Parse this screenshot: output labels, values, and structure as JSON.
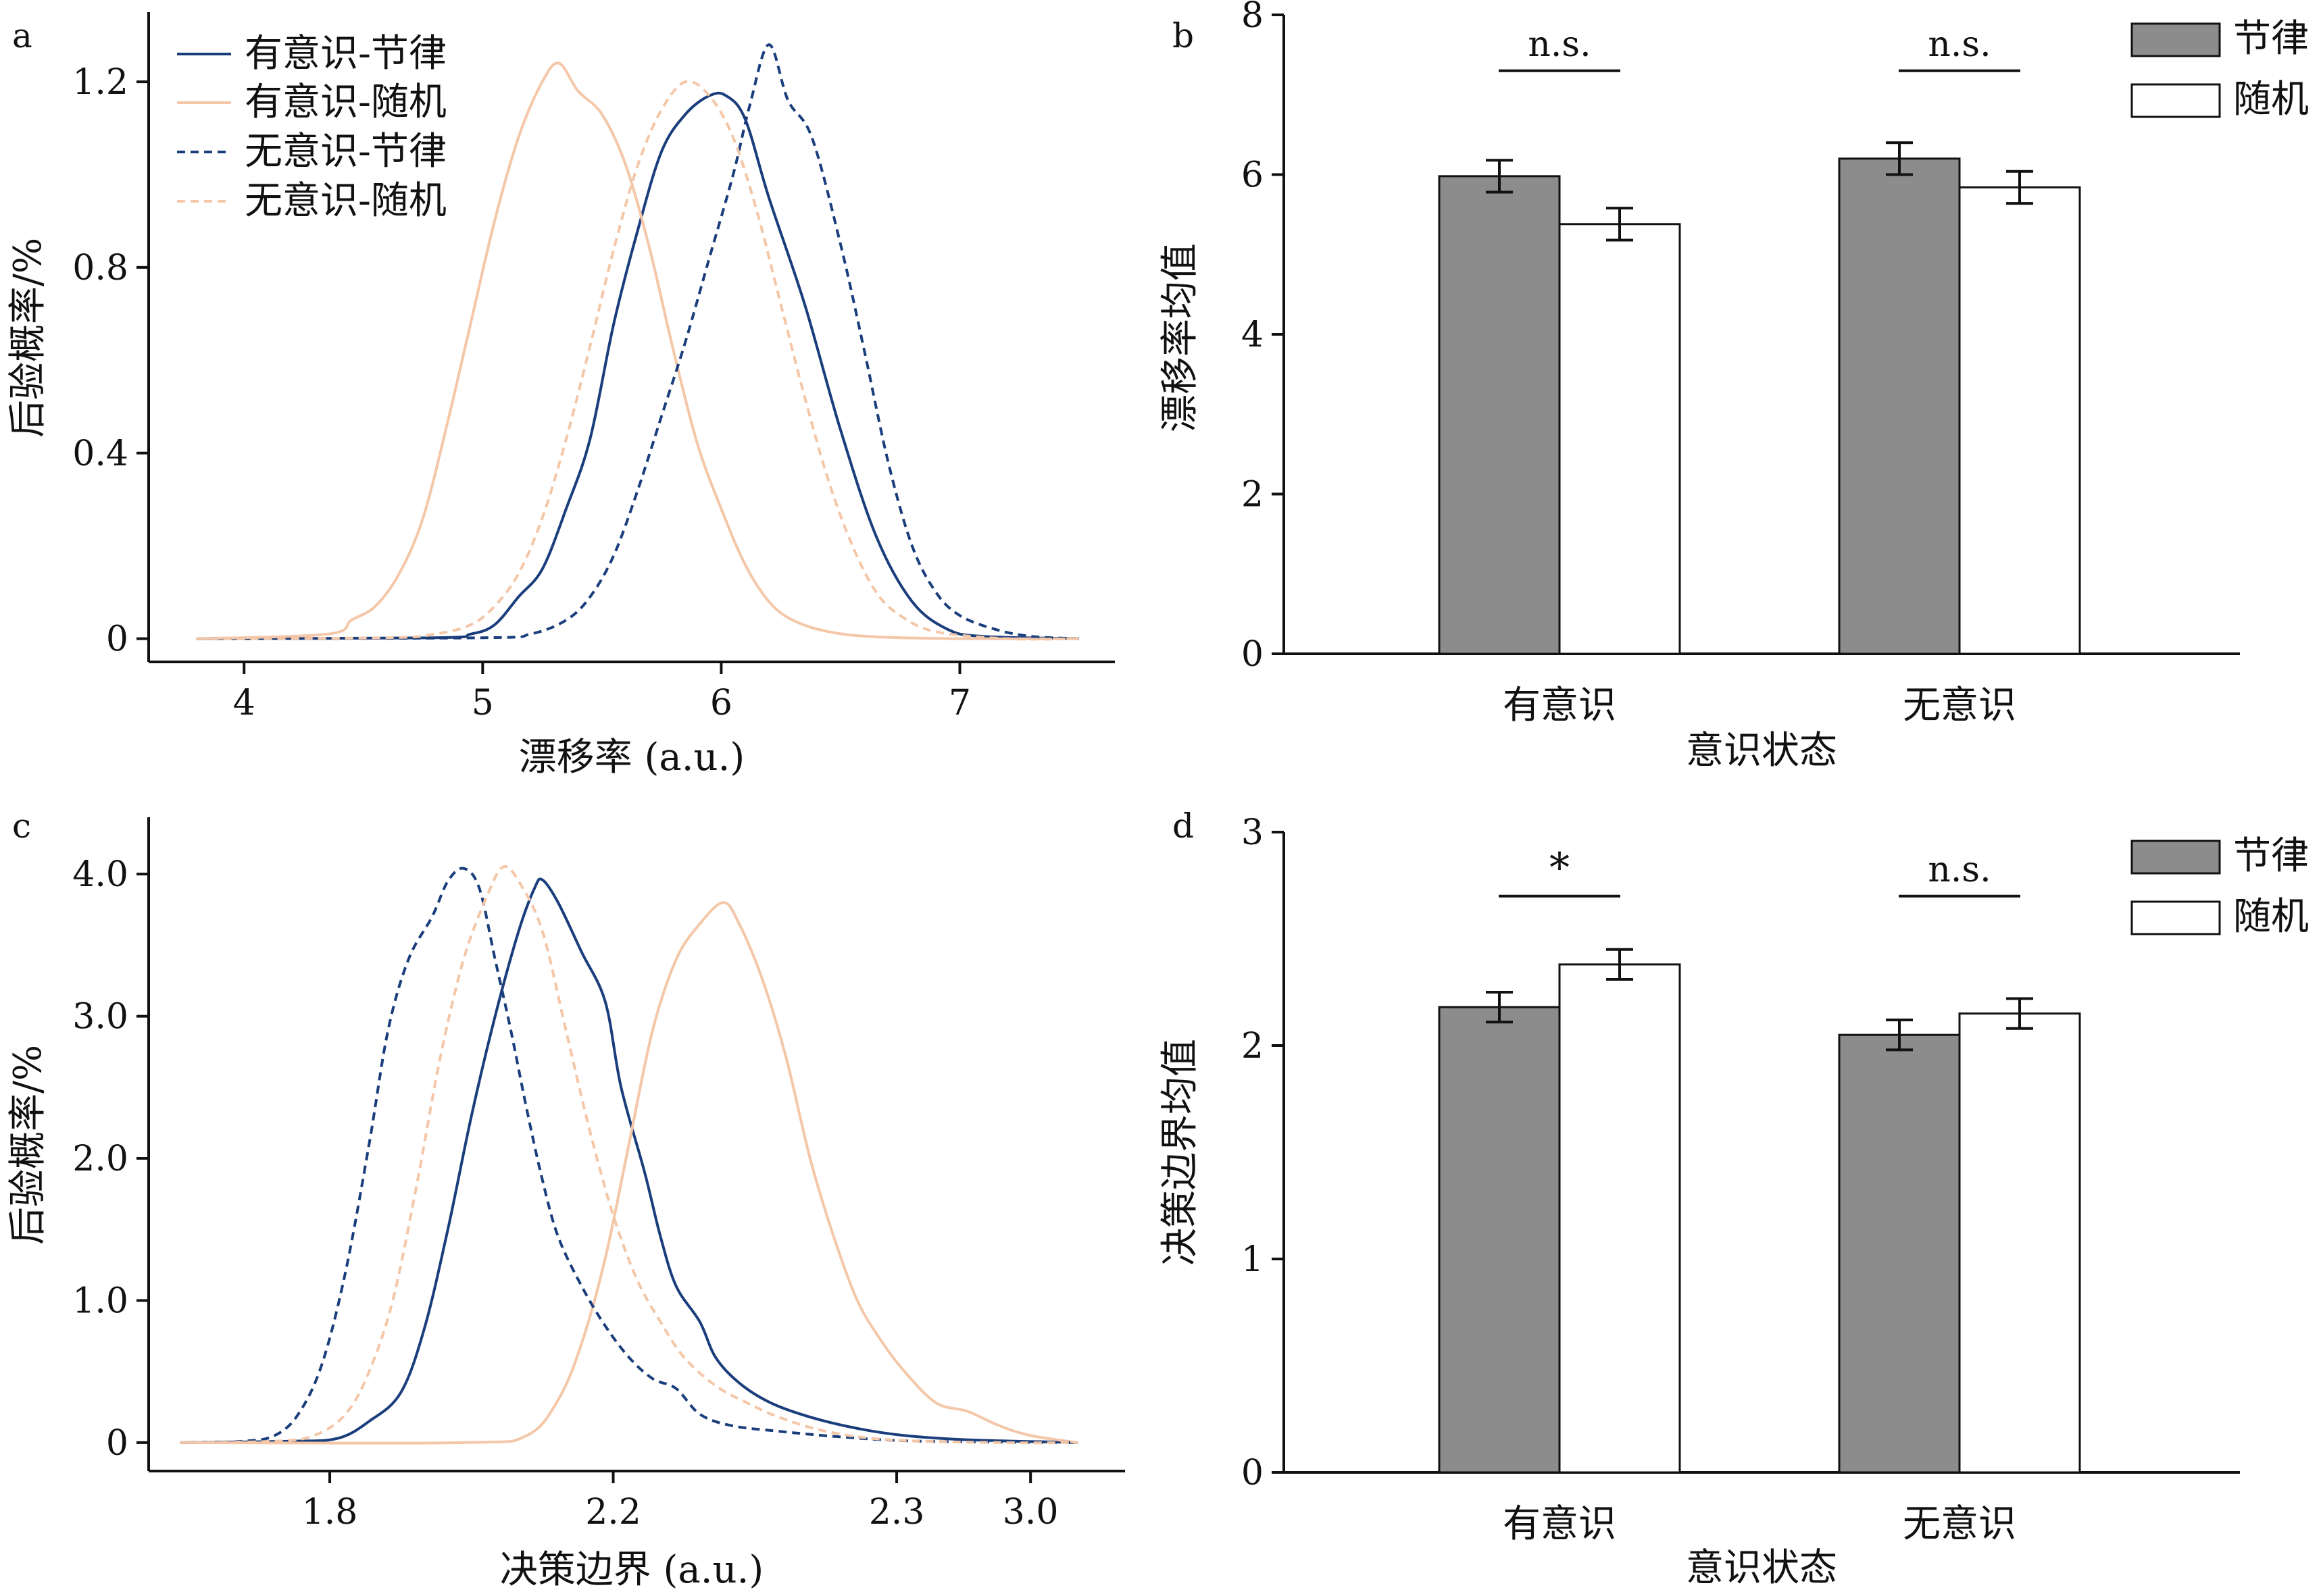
{
  "colors": {
    "conscious_rhythm": "#1a3d7c",
    "conscious_random": "#f4c7a8",
    "unconscious_rhythm": "#1a3d7c",
    "unconscious_random": "#f4c7a8",
    "bar_rhythm": "#8c8c8c",
    "bar_random": "#ffffff",
    "axis": "#111111"
  },
  "chart_data": [
    {
      "panel": "a",
      "type": "line",
      "xlabel": "漂移率 (a.u.)",
      "ylabel": "后验概率/%",
      "xlim": [
        3.6,
        7.65
      ],
      "ylim": [
        -0.05,
        1.35
      ],
      "x_ticks": [
        4,
        5,
        6,
        7
      ],
      "x_tick_labels": [
        "4",
        "5",
        "6",
        "7"
      ],
      "y_ticks": [
        0,
        0.4,
        0.8,
        1.2
      ],
      "y_tick_labels": [
        "0",
        "0.4",
        "0.8",
        "1.2"
      ],
      "series": [
        {
          "name": "有意识-节律",
          "dash": "solid",
          "color_key": "conscious_rhythm",
          "points": [
            [
              3.8,
              0
            ],
            [
              4.8,
              0.002
            ],
            [
              4.95,
              0.01
            ],
            [
              5.05,
              0.03
            ],
            [
              5.15,
              0.09
            ],
            [
              5.25,
              0.15
            ],
            [
              5.35,
              0.28
            ],
            [
              5.45,
              0.43
            ],
            [
              5.55,
              0.68
            ],
            [
              5.65,
              0.88
            ],
            [
              5.75,
              1.05
            ],
            [
              5.85,
              1.13
            ],
            [
              5.95,
              1.17
            ],
            [
              6.02,
              1.17
            ],
            [
              6.1,
              1.12
            ],
            [
              6.2,
              0.95
            ],
            [
              6.35,
              0.72
            ],
            [
              6.5,
              0.45
            ],
            [
              6.65,
              0.22
            ],
            [
              6.8,
              0.08
            ],
            [
              6.95,
              0.02
            ],
            [
              7.1,
              0.005
            ],
            [
              7.5,
              0
            ]
          ]
        },
        {
          "name": "有意识-随机",
          "dash": "solid",
          "color_key": "conscious_random",
          "points": [
            [
              3.8,
              0
            ],
            [
              4.35,
              0.01
            ],
            [
              4.45,
              0.04
            ],
            [
              4.55,
              0.07
            ],
            [
              4.65,
              0.14
            ],
            [
              4.75,
              0.26
            ],
            [
              4.85,
              0.46
            ],
            [
              4.95,
              0.68
            ],
            [
              5.05,
              0.9
            ],
            [
              5.15,
              1.08
            ],
            [
              5.25,
              1.2
            ],
            [
              5.32,
              1.24
            ],
            [
              5.4,
              1.18
            ],
            [
              5.5,
              1.13
            ],
            [
              5.6,
              1.02
            ],
            [
              5.7,
              0.84
            ],
            [
              5.8,
              0.62
            ],
            [
              5.9,
              0.42
            ],
            [
              6.0,
              0.28
            ],
            [
              6.1,
              0.16
            ],
            [
              6.2,
              0.08
            ],
            [
              6.3,
              0.04
            ],
            [
              6.45,
              0.015
            ],
            [
              6.65,
              0.004
            ],
            [
              7.0,
              0
            ],
            [
              7.5,
              0
            ]
          ]
        },
        {
          "name": "无意识-节律",
          "dash": "dashed",
          "color_key": "unconscious_rhythm",
          "points": [
            [
              3.8,
              0
            ],
            [
              5.0,
              0.002
            ],
            [
              5.2,
              0.01
            ],
            [
              5.35,
              0.04
            ],
            [
              5.45,
              0.09
            ],
            [
              5.55,
              0.18
            ],
            [
              5.65,
              0.32
            ],
            [
              5.75,
              0.48
            ],
            [
              5.85,
              0.64
            ],
            [
              5.95,
              0.82
            ],
            [
              6.05,
              1.0
            ],
            [
              6.12,
              1.15
            ],
            [
              6.2,
              1.28
            ],
            [
              6.28,
              1.16
            ],
            [
              6.38,
              1.08
            ],
            [
              6.5,
              0.85
            ],
            [
              6.6,
              0.62
            ],
            [
              6.7,
              0.38
            ],
            [
              6.8,
              0.2
            ],
            [
              6.9,
              0.1
            ],
            [
              7.0,
              0.05
            ],
            [
              7.15,
              0.02
            ],
            [
              7.3,
              0.005
            ],
            [
              7.5,
              0
            ]
          ]
        },
        {
          "name": "无意识-随机",
          "dash": "dashed",
          "color_key": "unconscious_random",
          "points": [
            [
              3.8,
              0
            ],
            [
              4.6,
              0.002
            ],
            [
              4.8,
              0.01
            ],
            [
              4.95,
              0.03
            ],
            [
              5.05,
              0.07
            ],
            [
              5.15,
              0.14
            ],
            [
              5.25,
              0.26
            ],
            [
              5.35,
              0.43
            ],
            [
              5.45,
              0.63
            ],
            [
              5.55,
              0.84
            ],
            [
              5.65,
              1.02
            ],
            [
              5.75,
              1.14
            ],
            [
              5.85,
              1.2
            ],
            [
              5.95,
              1.17
            ],
            [
              6.05,
              1.08
            ],
            [
              6.15,
              0.92
            ],
            [
              6.25,
              0.72
            ],
            [
              6.35,
              0.52
            ],
            [
              6.45,
              0.34
            ],
            [
              6.55,
              0.2
            ],
            [
              6.65,
              0.1
            ],
            [
              6.75,
              0.05
            ],
            [
              6.9,
              0.015
            ],
            [
              7.2,
              0
            ],
            [
              7.5,
              0
            ]
          ]
        }
      ]
    },
    {
      "panel": "b",
      "type": "bar",
      "xlabel": "意识状态",
      "ylabel": "漂移率均值",
      "ylim": [
        0,
        8
      ],
      "y_ticks": [
        0,
        2,
        4,
        6,
        8
      ],
      "y_tick_labels": [
        "0",
        "2",
        "4",
        "6",
        "8"
      ],
      "categories": [
        "有意识",
        "无意识"
      ],
      "series": [
        {
          "name": "节律",
          "color_key": "bar_rhythm",
          "values": [
            5.98,
            6.2
          ],
          "errors": [
            0.2,
            0.2
          ]
        },
        {
          "name": "随机",
          "color_key": "bar_random",
          "values": [
            5.38,
            5.84
          ],
          "errors": [
            0.2,
            0.2
          ]
        }
      ],
      "significance": [
        {
          "label": "n.s.",
          "y": 7.3
        },
        {
          "label": "n.s.",
          "y": 7.3
        }
      ]
    },
    {
      "panel": "c",
      "type": "line",
      "xlabel": "决策边界 (a.u.)",
      "ylabel": "后验概率/%",
      "xlim": [
        -0.4,
        5.8
      ],
      "ylim": [
        -0.2,
        4.4
      ],
      "x_ticks": [
        0.75,
        2.55,
        4.35,
        5.2
      ],
      "x_tick_labels": [
        "1.8",
        "2.2",
        "2.3",
        "3.0"
      ],
      "y_ticks": [
        0,
        1,
        2,
        3,
        4
      ],
      "y_tick_labels": [
        "0",
        "1.0",
        "2.0",
        "3.0",
        "4.0"
      ],
      "series": [
        {
          "name": "有意识-节律",
          "dash": "solid",
          "color_key": "conscious_rhythm",
          "points": [
            [
              -0.2,
              0
            ],
            [
              0.5,
              0.01
            ],
            [
              0.8,
              0.03
            ],
            [
              1.0,
              0.15
            ],
            [
              1.2,
              0.35
            ],
            [
              1.35,
              0.8
            ],
            [
              1.5,
              1.5
            ],
            [
              1.65,
              2.3
            ],
            [
              1.8,
              3.0
            ],
            [
              1.95,
              3.6
            ],
            [
              2.05,
              3.9
            ],
            [
              2.1,
              3.96
            ],
            [
              2.2,
              3.8
            ],
            [
              2.35,
              3.45
            ],
            [
              2.5,
              3.1
            ],
            [
              2.6,
              2.5
            ],
            [
              2.75,
              1.9
            ],
            [
              2.85,
              1.45
            ],
            [
              2.95,
              1.1
            ],
            [
              3.1,
              0.85
            ],
            [
              3.2,
              0.6
            ],
            [
              3.35,
              0.42
            ],
            [
              3.55,
              0.28
            ],
            [
              3.8,
              0.18
            ],
            [
              4.1,
              0.1
            ],
            [
              4.4,
              0.05
            ],
            [
              4.8,
              0.02
            ],
            [
              5.5,
              0
            ]
          ]
        },
        {
          "name": "有意识-随机",
          "dash": "solid",
          "color_key": "conscious_random",
          "points": [
            [
              -0.2,
              0
            ],
            [
              1.6,
              0
            ],
            [
              2.0,
              0.05
            ],
            [
              2.2,
              0.3
            ],
            [
              2.35,
              0.7
            ],
            [
              2.5,
              1.3
            ],
            [
              2.65,
              2.1
            ],
            [
              2.8,
              2.9
            ],
            [
              2.95,
              3.4
            ],
            [
              3.1,
              3.65
            ],
            [
              3.25,
              3.8
            ],
            [
              3.35,
              3.65
            ],
            [
              3.5,
              3.25
            ],
            [
              3.65,
              2.7
            ],
            [
              3.8,
              2.0
            ],
            [
              3.95,
              1.45
            ],
            [
              4.1,
              1.0
            ],
            [
              4.25,
              0.72
            ],
            [
              4.4,
              0.5
            ],
            [
              4.6,
              0.28
            ],
            [
              4.8,
              0.22
            ],
            [
              5.0,
              0.12
            ],
            [
              5.2,
              0.05
            ],
            [
              5.5,
              0
            ]
          ]
        },
        {
          "name": "无意识-节律",
          "dash": "dashed",
          "color_key": "unconscious_rhythm",
          "points": [
            [
              -0.2,
              0
            ],
            [
              0.2,
              0.01
            ],
            [
              0.4,
              0.05
            ],
            [
              0.55,
              0.2
            ],
            [
              0.7,
              0.55
            ],
            [
              0.85,
              1.2
            ],
            [
              1.0,
              2.1
            ],
            [
              1.12,
              2.9
            ],
            [
              1.25,
              3.4
            ],
            [
              1.4,
              3.7
            ],
            [
              1.5,
              3.95
            ],
            [
              1.6,
              4.04
            ],
            [
              1.7,
              3.9
            ],
            [
              1.8,
              3.4
            ],
            [
              1.9,
              2.9
            ],
            [
              2.0,
              2.35
            ],
            [
              2.1,
              1.85
            ],
            [
              2.2,
              1.45
            ],
            [
              2.35,
              1.1
            ],
            [
              2.5,
              0.82
            ],
            [
              2.65,
              0.6
            ],
            [
              2.8,
              0.45
            ],
            [
              2.95,
              0.38
            ],
            [
              3.1,
              0.2
            ],
            [
              3.3,
              0.12
            ],
            [
              3.6,
              0.08
            ],
            [
              4.0,
              0.04
            ],
            [
              4.5,
              0.01
            ],
            [
              5.5,
              0
            ]
          ]
        },
        {
          "name": "无意识-随机",
          "dash": "dashed",
          "color_key": "unconscious_random",
          "points": [
            [
              -0.2,
              0
            ],
            [
              0.4,
              0.01
            ],
            [
              0.65,
              0.05
            ],
            [
              0.85,
              0.2
            ],
            [
              1.0,
              0.5
            ],
            [
              1.15,
              1.0
            ],
            [
              1.3,
              1.8
            ],
            [
              1.45,
              2.7
            ],
            [
              1.6,
              3.4
            ],
            [
              1.75,
              3.85
            ],
            [
              1.85,
              4.05
            ],
            [
              1.95,
              3.95
            ],
            [
              2.1,
              3.6
            ],
            [
              2.25,
              2.9
            ],
            [
              2.4,
              2.2
            ],
            [
              2.55,
              1.6
            ],
            [
              2.7,
              1.15
            ],
            [
              2.85,
              0.85
            ],
            [
              3.0,
              0.6
            ],
            [
              3.2,
              0.4
            ],
            [
              3.4,
              0.28
            ],
            [
              3.6,
              0.18
            ],
            [
              3.9,
              0.08
            ],
            [
              4.3,
              0.02
            ],
            [
              5.0,
              0
            ],
            [
              5.5,
              0
            ]
          ]
        }
      ],
      "legend_reference": "panel_a"
    },
    {
      "panel": "d",
      "type": "bar",
      "xlabel": "意识状态",
      "ylabel": "决策边界均值",
      "ylim": [
        0,
        3
      ],
      "y_ticks": [
        0,
        1,
        2,
        3
      ],
      "y_tick_labels": [
        "0",
        "1",
        "2",
        "3"
      ],
      "categories": [
        "有意识",
        "无意识"
      ],
      "series": [
        {
          "name": "节律",
          "color_key": "bar_rhythm",
          "values": [
            2.18,
            2.05
          ],
          "errors": [
            0.07,
            0.07
          ]
        },
        {
          "name": "随机",
          "color_key": "bar_random",
          "values": [
            2.38,
            2.15
          ],
          "errors": [
            0.07,
            0.07
          ]
        }
      ],
      "significance": [
        {
          "label": "*",
          "y": 2.7
        },
        {
          "label": "n.s.",
          "y": 2.7
        }
      ]
    }
  ]
}
